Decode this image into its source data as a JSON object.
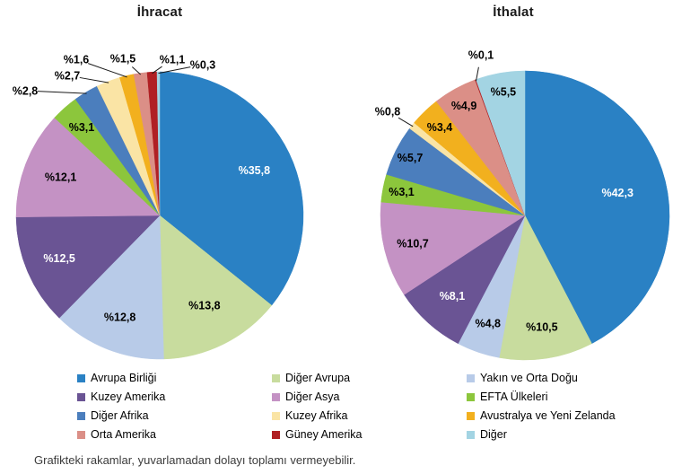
{
  "chart_data": {
    "type": "pie",
    "layout": "two pies side by side, shared legend at bottom, labels outside with leader lines for smallest slices",
    "legend_position": "bottom",
    "value_format": "percent with Turkish decimal comma, e.g. %35,8",
    "categories": [
      "Avrupa Birliği",
      "Diğer Avrupa",
      "Yakın ve Orta Doğu",
      "Kuzey Amerika",
      "Diğer Asya",
      "EFTA Ülkeleri",
      "Diğer Afrika",
      "Kuzey Afrika",
      "Avustralya ve Yeni Zelanda",
      "Orta Amerika",
      "Güney Amerika",
      "Diğer"
    ],
    "colors": [
      "#2A81C4",
      "#C8DC9E",
      "#B8CBE8",
      "#6A5494",
      "#C492C4",
      "#8CC63C",
      "#4B7EBD",
      "#FAE4A5",
      "#F2B01E",
      "#DB8F87",
      "#B02024",
      "#A3D4E3"
    ],
    "pies": [
      {
        "title": "İhracat",
        "values": [
          35.8,
          13.8,
          12.8,
          12.5,
          12.1,
          3.1,
          2.8,
          2.7,
          1.6,
          1.5,
          1.1,
          0.3
        ]
      },
      {
        "title": "İthalat",
        "values": [
          42.3,
          10.5,
          4.8,
          8.1,
          10.7,
          3.1,
          5.7,
          0.8,
          3.4,
          4.9,
          0.1,
          5.5
        ]
      }
    ]
  },
  "footnote": "Grafikteki rakamlar, yuvarlamadan dolayı toplamı vermeyebilir."
}
